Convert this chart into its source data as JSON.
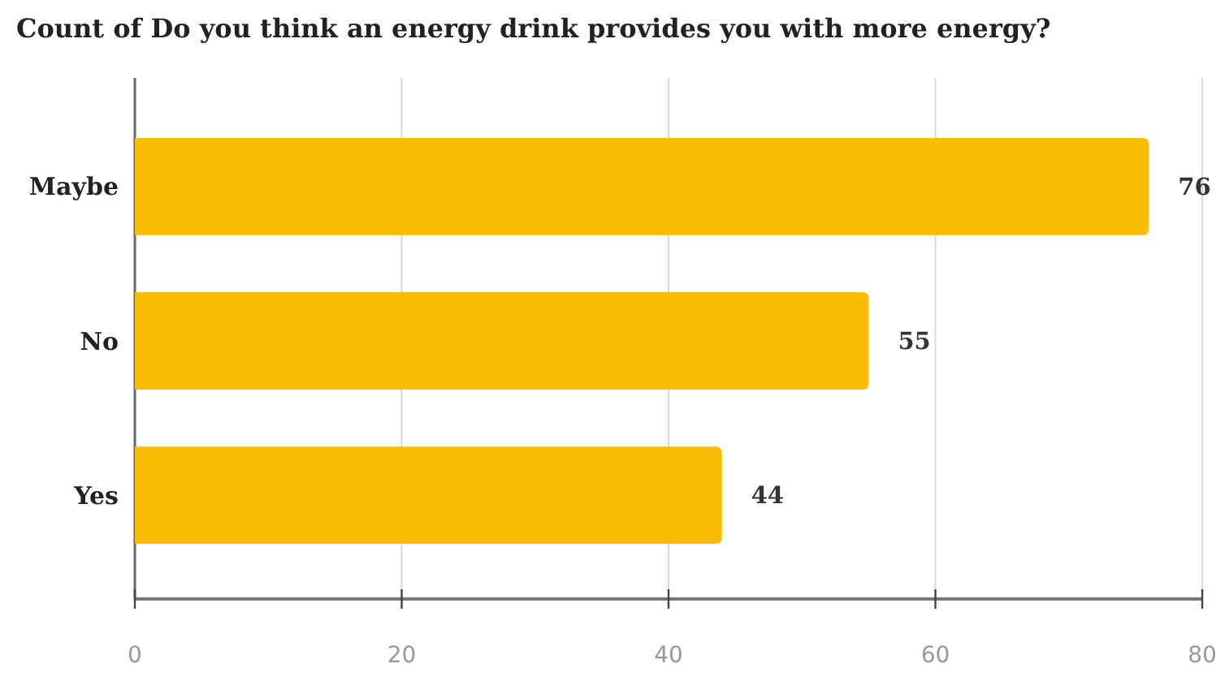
{
  "chart_data": {
    "type": "bar",
    "orientation": "horizontal",
    "title": "Count of Do you think an energy drink provides you with more energy?",
    "categories": [
      "Maybe",
      "No",
      "Yes"
    ],
    "values": [
      76,
      55,
      44
    ],
    "color": "#fbbc04",
    "xlim": [
      0,
      80
    ],
    "xticks": [
      0,
      20,
      40,
      60,
      80
    ],
    "grid": "x",
    "data_labels": true
  }
}
